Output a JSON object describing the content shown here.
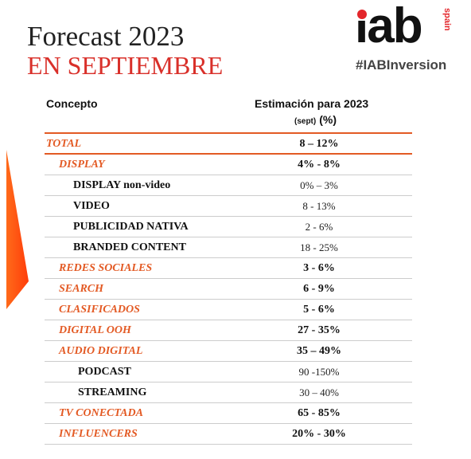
{
  "header": {
    "title_line1": "Forecast 2023",
    "title_line2": "EN SEPTIEMBRE"
  },
  "logo": {
    "brand": "iab",
    "country": "spain",
    "hashtag": "#IABInversion"
  },
  "table": {
    "col_concept": "Concepto",
    "col_estimate": "Estimación para 2023",
    "unit_small": "(sept)",
    "unit_pct": "(%)",
    "rows": [
      {
        "label": "TOTAL",
        "value": "8 – 12%",
        "style": "category",
        "level": 0
      },
      {
        "label": "DISPLAY",
        "value": "4% - 8%",
        "style": "category",
        "level": 1
      },
      {
        "label": "DISPLAY non-video",
        "value": "0% – 3%",
        "style": "sub",
        "level": 2
      },
      {
        "label": "VIDEO",
        "value": "8 - 13%",
        "style": "sub",
        "level": 2
      },
      {
        "label": "PUBLICIDAD NATIVA",
        "value": "2 - 6%",
        "style": "sub",
        "level": 2
      },
      {
        "label": "BRANDED CONTENT",
        "value": "18 - 25%",
        "style": "sub",
        "level": 2
      },
      {
        "label": "REDES SOCIALES",
        "value": "3 - 6%",
        "style": "category",
        "level": 1
      },
      {
        "label": "SEARCH",
        "value": "6 - 9%",
        "style": "category",
        "level": 1
      },
      {
        "label": "CLASIFICADOS",
        "value": "5 - 6%",
        "style": "category",
        "level": 1
      },
      {
        "label": "DIGITAL OOH",
        "value": "27 - 35%",
        "style": "category",
        "level": 1
      },
      {
        "label": "AUDIO DIGITAL",
        "value": "35 – 49%",
        "style": "category",
        "level": 1
      },
      {
        "label": "PODCAST",
        "value": "90 -150%",
        "style": "sub",
        "level": 3
      },
      {
        "label": "STREAMING",
        "value": "30 – 40%",
        "style": "sub",
        "level": 3
      },
      {
        "label": "TV CONECTADA",
        "value": "65 - 85%",
        "style": "category",
        "level": 1
      },
      {
        "label": "INFLUENCERS",
        "value": "20% - 30%",
        "style": "category",
        "level": 1
      }
    ]
  },
  "colors": {
    "accent": "#e35a24",
    "title_red": "#d9302a",
    "logo_red": "#e3262b"
  }
}
